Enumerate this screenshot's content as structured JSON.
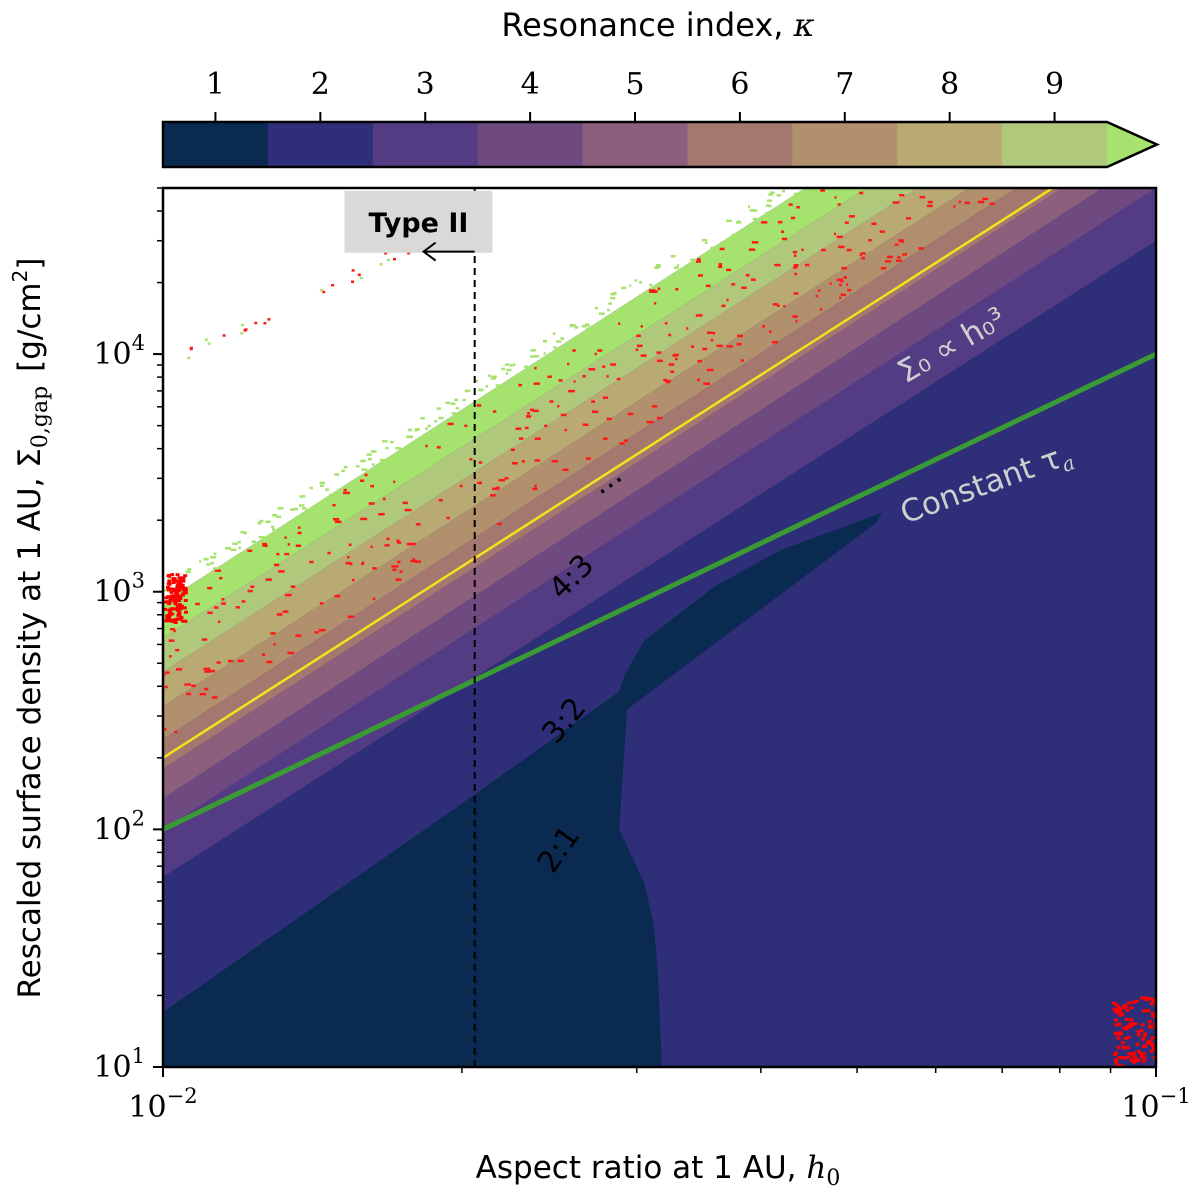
{
  "chart_data": {
    "type": "heatmap",
    "title": "",
    "xlabel": "Aspect ratio at 1 AU, h₀",
    "xlabel_prefix": "Aspect ratio at 1 AU, ",
    "xlabel_symbol": "h",
    "xlabel_sub": "0",
    "ylabel_prefix": "Rescaled surface density at 1 AU, Σ",
    "ylabel_sub": "0,gap",
    "ylabel_units": "[g/cm",
    "ylabel_units_sup": "2",
    "ylabel_units_close": "]",
    "x_scale": "log",
    "y_scale": "log",
    "xlim": [
      0.01,
      0.1
    ],
    "ylim": [
      10,
      50000
    ],
    "x_ticks": [
      {
        "value": 0.01,
        "base": "10",
        "exp": "−2"
      },
      {
        "value": 0.1,
        "base": "10",
        "exp": "−1"
      }
    ],
    "y_ticks": [
      {
        "value": 10,
        "base": "10",
        "exp": "1"
      },
      {
        "value": 100,
        "base": "10",
        "exp": "2"
      },
      {
        "value": 1000,
        "base": "10",
        "exp": "3"
      },
      {
        "value": 10000,
        "base": "10",
        "exp": "4"
      }
    ],
    "colorbar": {
      "label": "Resonance index, κ",
      "label_prefix": "Resonance index, ",
      "label_symbol": "κ",
      "ticks": [
        1,
        2,
        3,
        4,
        5,
        6,
        7,
        8,
        9
      ],
      "tick_labels": [
        "1",
        "2",
        "3",
        "4",
        "5",
        "6",
        "7",
        "8",
        "9"
      ],
      "colors": [
        "#0b2a51",
        "#2e2f78",
        "#533c83",
        "#6e4a80",
        "#8c5f7c",
        "#a4776f",
        "#b1906d",
        "#b9aa74",
        "#b0c87c"
      ],
      "extend_color": "#a6e26e",
      "extend": "max"
    },
    "series": [
      {
        "name": "Sigma0 proportional to h0^3",
        "type": "line",
        "color": "#f4e21a",
        "x": [
          0.01,
          0.0787
        ],
        "y": [
          200,
          50000
        ]
      },
      {
        "name": "Constant tau_a",
        "type": "line",
        "color": "#3a9a34",
        "x": [
          0.01,
          0.1
        ],
        "y": [
          100,
          10000
        ]
      },
      {
        "name": "Type II boundary",
        "type": "vline",
        "color": "#000000",
        "style": "dashed",
        "x": [
          0.0206,
          0.0206
        ],
        "y": [
          10,
          50000
        ]
      }
    ],
    "region_boundaries_2_3_4": [
      {
        "name": "boundary 1|2 (2:1 | 3:2)",
        "x": [
          0.01,
          0.0206,
          0.0288,
          0.0292,
          0.0305,
          0.0359,
          0.0419,
          0.053
        ],
        "y": [
          17,
          140,
          380,
          450,
          620,
          1050,
          1500,
          2150
        ]
      },
      {
        "name": "boundary 2|3 (3:2 | 4:3)",
        "x": [
          0.01,
          0.1
        ],
        "y": [
          63,
          30000
        ]
      },
      {
        "name": "boundary 3|4",
        "x": [
          0.01,
          0.1
        ],
        "y": [
          100,
          50000
        ]
      },
      {
        "name": "boundary 4|5",
        "x": [
          0.01,
          0.1
        ],
        "y": [
          135,
          70000
        ]
      },
      {
        "name": "boundary 5|6",
        "x": [
          0.01,
          0.1
        ],
        "y": [
          180,
          90000
        ]
      },
      {
        "name": "boundary 6|7",
        "x": [
          0.01,
          0.1
        ],
        "y": [
          240,
          120000
        ]
      },
      {
        "name": "boundary 7|8",
        "x": [
          0.01,
          0.1
        ],
        "y": [
          330,
          160000
        ]
      },
      {
        "name": "boundary 8|9",
        "x": [
          0.01,
          0.1
        ],
        "y": [
          460,
          220000
        ]
      },
      {
        "name": "boundary 9|upper",
        "x": [
          0.01,
          0.1
        ],
        "y": [
          640,
          300000
        ]
      },
      {
        "name": "edge of filled region",
        "x": [
          0.01,
          0.1
        ],
        "y": [
          900,
          450000
        ]
      }
    ],
    "resonance_2_1_lower_edge": {
      "x": [
        0.0288,
        0.0305,
        0.0312,
        0.0315,
        0.0318
      ],
      "y": [
        100,
        60,
        40,
        25,
        10
      ]
    },
    "annotations": [
      {
        "text": "Type II",
        "boxed": true,
        "x": 0.018,
        "y": 35000
      },
      {
        "text": "2:1",
        "rotation": -55,
        "x": 0.0255,
        "y": 78
      },
      {
        "text": "3:2",
        "rotation": -50,
        "x": 0.0258,
        "y": 270
      },
      {
        "text": "4:3",
        "rotation": -45,
        "x": 0.0262,
        "y": 1080
      },
      {
        "text": "⋯",
        "rotation": -35,
        "x": 0.0286,
        "y": 2600
      },
      {
        "text": "Constant τ",
        "sub": "a",
        "rotation": -20,
        "color": "#cfcfcf",
        "x": 0.068,
        "y": 2600
      },
      {
        "text": "Σ₀ ∝ h₀³",
        "rotation": -30,
        "color": "#cfcfcf",
        "x": 0.063,
        "y": 10000
      }
    ],
    "scatter_regions": [
      {
        "name": "red points lower-right",
        "color": "#ff0000",
        "x_range": [
          0.09,
          0.1
        ],
        "y_range": [
          10,
          20
        ]
      },
      {
        "name": "red points upper-left",
        "color": "#ff0000",
        "x_range": [
          0.01,
          0.0105
        ],
        "y_range": [
          750,
          1200
        ]
      }
    ],
    "legend": "none",
    "grid": false
  }
}
